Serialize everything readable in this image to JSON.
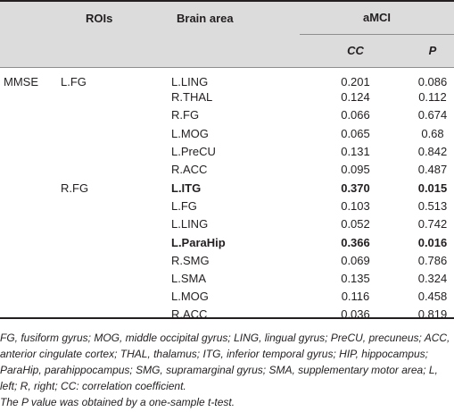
{
  "header": {
    "rois": "ROIs",
    "brain_area": "Brain area",
    "group": "aMCI",
    "cc": "CC",
    "p": "P"
  },
  "rows": [
    {
      "measure": "MMSE",
      "roi": "L.FG",
      "area": "L.LING",
      "cc": "0.201",
      "p": "0.086",
      "bold": false
    },
    {
      "measure": "",
      "roi": "",
      "area": "R.THAL",
      "cc": "0.124",
      "p": "0.112",
      "bold": false
    },
    {
      "measure": "",
      "roi": "",
      "area": "R.FG",
      "cc": "0.066",
      "p": "0.674",
      "bold": false
    },
    {
      "measure": "",
      "roi": "",
      "area": "L.MOG",
      "cc": "0.065",
      "p": "0.68",
      "bold": false
    },
    {
      "measure": "",
      "roi": "",
      "area": "L.PreCU",
      "cc": "0.131",
      "p": "0.842",
      "bold": false
    },
    {
      "measure": "",
      "roi": "",
      "area": "R.ACC",
      "cc": "0.095",
      "p": "0.487",
      "bold": false
    },
    {
      "measure": "",
      "roi": "R.FG",
      "area": "L.ITG",
      "cc": "0.370",
      "p": "0.015",
      "bold": true
    },
    {
      "measure": "",
      "roi": "",
      "area": "L.FG",
      "cc": "0.103",
      "p": "0.513",
      "bold": false
    },
    {
      "measure": "",
      "roi": "",
      "area": "L.LING",
      "cc": "0.052",
      "p": "0.742",
      "bold": false
    },
    {
      "measure": "",
      "roi": "",
      "area": "L.ParaHip",
      "cc": "0.366",
      "p": "0.016",
      "bold": true
    },
    {
      "measure": "",
      "roi": "",
      "area": "R.SMG",
      "cc": "0.069",
      "p": "0.786",
      "bold": false
    },
    {
      "measure": "",
      "roi": "",
      "area": "L.SMA",
      "cc": "0.135",
      "p": "0.324",
      "bold": false
    },
    {
      "measure": "",
      "roi": "",
      "area": "L.MOG",
      "cc": "0.116",
      "p": "0.458",
      "bold": false
    },
    {
      "measure": "",
      "roi": "",
      "area": "R.ACC",
      "cc": "0.036",
      "p": "0.819",
      "bold": false
    }
  ],
  "footnote": {
    "abbreviations": "FG, fusiform gyrus; MOG, middle occipital gyrus; LING, lingual gyrus; PreCU, precuneus; ACC, anterior cingulate cortex; THAL, thalamus; ITG, inferior temporal gyrus; HIP, hippocampus; ParaHip, parahippocampus; SMG, supramarginal gyrus; SMA, supplementary motor area; L, left; R, right; CC: correlation coefficient.",
    "p_value_note": "The P value was obtained by a one-sample t-test."
  }
}
